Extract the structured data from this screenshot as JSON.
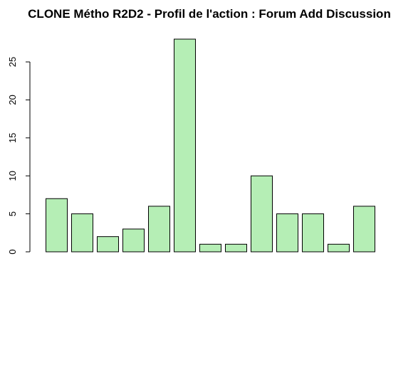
{
  "chart_data": {
    "type": "bar",
    "title": "CLONE Métho R2D2 - Profil de l'action : Forum Add Discussion",
    "xlabel": "",
    "ylabel": "",
    "categories": [
      "",
      "",
      "",
      "",
      "",
      "",
      "",
      "",
      "",
      "",
      "",
      "",
      ""
    ],
    "values": [
      7,
      5,
      2,
      3,
      6,
      28,
      1,
      1,
      10,
      5,
      5,
      1,
      6
    ],
    "ylim": [
      0,
      28
    ],
    "yticks": [
      "0",
      "5",
      "10",
      "15",
      "20",
      "25"
    ],
    "bar_color": "#b5eeb5",
    "grid": false,
    "legend": "none"
  }
}
